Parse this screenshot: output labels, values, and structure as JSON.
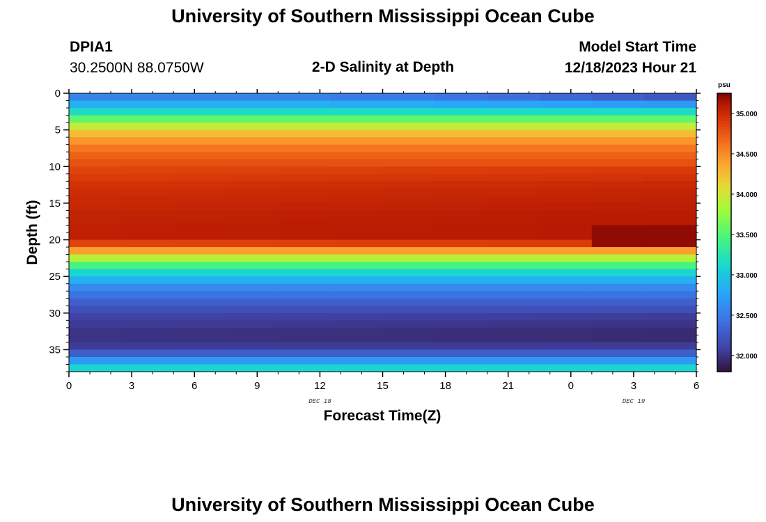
{
  "header": {
    "title": "University of Southern Mississippi Ocean Cube",
    "station_id": "DPIA1",
    "coords": "30.2500N  88.0750W",
    "plot_title": "2-D Salinity at Depth",
    "model_label": "Model Start Time",
    "model_time": "12/18/2023 Hour 21"
  },
  "footer": {
    "title": "University of Southern Mississippi Ocean Cube"
  },
  "chart_data": {
    "type": "heatmap",
    "xlabel": "Forecast Time(Z)",
    "ylabel": "Depth (ft)",
    "x_tick_labels": [
      "0",
      "3",
      "6",
      "9",
      "12",
      "15",
      "18",
      "21",
      "0",
      "3",
      "6"
    ],
    "x_hours": [
      0,
      3,
      6,
      9,
      12,
      15,
      18,
      21,
      24,
      27,
      30
    ],
    "xlim": [
      0,
      30
    ],
    "date_labels": [
      {
        "text": "DEC 18",
        "hour": 12
      },
      {
        "text": "DEC 19",
        "hour": 27
      }
    ],
    "y_ticks": [
      0,
      5,
      10,
      15,
      20,
      25,
      30,
      35
    ],
    "ylim": [
      0,
      38
    ],
    "y_inverted": true,
    "colorbar": {
      "unit": "psu",
      "range": [
        31.8,
        35.25
      ],
      "tick_values": [
        32.0,
        32.5,
        33.0,
        33.5,
        34.0,
        34.5,
        35.0
      ],
      "tick_labels": [
        "32.000",
        "32.500",
        "33.000",
        "33.500",
        "34.000",
        "34.500",
        "35.000"
      ]
    },
    "salinity_profile": {
      "depths_ft": [
        0,
        1,
        2,
        3,
        4,
        5,
        6,
        7,
        8,
        9,
        10,
        11,
        12,
        13,
        14,
        15,
        16,
        17,
        18,
        19,
        20,
        21,
        22,
        23,
        24,
        25,
        26,
        27,
        28,
        29,
        30,
        31,
        32,
        33,
        34,
        35,
        36,
        37
      ],
      "values_psu": [
        32.55,
        32.85,
        33.15,
        33.55,
        33.95,
        34.25,
        34.45,
        34.6,
        34.7,
        34.78,
        34.85,
        34.9,
        34.95,
        34.98,
        35.0,
        35.02,
        35.04,
        35.05,
        35.06,
        35.06,
        34.85,
        34.4,
        33.9,
        33.45,
        33.1,
        32.85,
        32.6,
        32.45,
        32.3,
        32.2,
        32.1,
        32.05,
        32.0,
        32.0,
        32.05,
        32.3,
        32.7,
        33.1
      ],
      "surface_change_psu_by_hour": [
        0,
        0,
        0,
        0,
        0,
        -0.05,
        -0.1,
        -0.15,
        -0.2,
        -0.25,
        -0.3
      ],
      "deep_salinity_anomaly": {
        "depth_ft": [
          18,
          20
        ],
        "from_hour": 26,
        "value_psu": 35.2
      }
    }
  }
}
